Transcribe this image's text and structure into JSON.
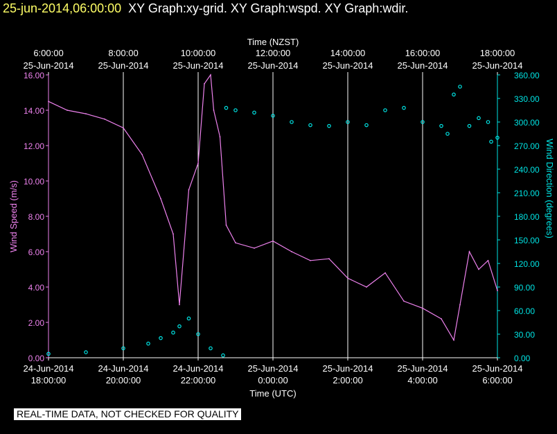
{
  "header": {
    "timestamp": "25-jun-2014,06:00:00",
    "title": "XY Graph:xy-grid.  XY Graph:wspd.  XY Graph:wdir."
  },
  "notice": "REAL-TIME DATA, NOT CHECKED FOR QUALITY",
  "colors": {
    "background": "#000000",
    "speed": "#ee82ee",
    "direction": "#00e5e5",
    "grid": "#ffffff",
    "timestamp": "#ffff66"
  },
  "chart_data": {
    "type": "line",
    "top_axis_label": "Time (NZST)",
    "top_ticks": [
      {
        "time": "6:00:00",
        "date": "25-Jun-2014"
      },
      {
        "time": "8:00:00",
        "date": "25-Jun-2014"
      },
      {
        "time": "10:00:00",
        "date": "25-Jun-2014"
      },
      {
        "time": "12:00:00",
        "date": "25-Jun-2014"
      },
      {
        "time": "14:00:00",
        "date": "25-Jun-2014"
      },
      {
        "time": "16:00:00",
        "date": "25-Jun-2014"
      },
      {
        "time": "18:00:00",
        "date": "25-Jun-2014"
      }
    ],
    "xlabel": "Time (UTC)",
    "bottom_ticks": [
      {
        "date": "24-Jun-2014",
        "time": "18:00:00"
      },
      {
        "date": "24-Jun-2014",
        "time": "20:00:00"
      },
      {
        "date": "24-Jun-2014",
        "time": "22:00:00"
      },
      {
        "date": "25-Jun-2014",
        "time": "0:00:00"
      },
      {
        "date": "25-Jun-2014",
        "time": "2:00:00"
      },
      {
        "date": "25-Jun-2014",
        "time": "4:00:00"
      },
      {
        "date": "25-Jun-2014",
        "time": "6:00:00"
      }
    ],
    "xlim_utc": [
      "24-Jun-2014 18:00:00",
      "25-Jun-2014 06:00:00"
    ],
    "grid": true,
    "left_axis": {
      "label": "Wind Speed (m/s)",
      "ticks": [
        "0.00",
        "2.00",
        "4.00",
        "6.00",
        "8.00",
        "10.00",
        "12.00",
        "14.00",
        "16.00"
      ],
      "ylim": [
        0,
        16
      ]
    },
    "right_axis": {
      "label": "Wind Direction (degrees)",
      "ticks": [
        "0.00",
        "30.00",
        "60.00",
        "90.00",
        "120.00",
        "150.00",
        "180.00",
        "210.00",
        "240.00",
        "270.00",
        "300.00",
        "330.00",
        "360.00"
      ],
      "ylim": [
        0,
        360
      ]
    },
    "series": [
      {
        "axis": "left",
        "style": "line",
        "x": [
          "24-Jun-2014 18:00",
          "24-Jun-2014 18:30",
          "24-Jun-2014 19:00",
          "24-Jun-2014 19:30",
          "24-Jun-2014 20:00",
          "24-Jun-2014 20:30",
          "24-Jun-2014 21:00",
          "24-Jun-2014 21:20",
          "24-Jun-2014 21:30",
          "24-Jun-2014 21:45",
          "24-Jun-2014 22:00",
          "24-Jun-2014 22:10",
          "24-Jun-2014 22:20",
          "24-Jun-2014 22:25",
          "24-Jun-2014 22:35",
          "24-Jun-2014 22:45",
          "24-Jun-2014 23:00",
          "24-Jun-2014 23:30",
          "25-Jun-2014 00:00",
          "25-Jun-2014 00:30",
          "25-Jun-2014 01:00",
          "25-Jun-2014 01:30",
          "25-Jun-2014 02:00",
          "25-Jun-2014 02:30",
          "25-Jun-2014 03:00",
          "25-Jun-2014 03:30",
          "25-Jun-2014 04:00",
          "25-Jun-2014 04:30",
          "25-Jun-2014 04:50",
          "25-Jun-2014 05:00",
          "25-Jun-2014 05:15",
          "25-Jun-2014 05:30",
          "25-Jun-2014 05:45",
          "25-Jun-2014 06:00"
        ],
        "values": [
          14.5,
          14.0,
          13.8,
          13.5,
          13.0,
          11.5,
          9.0,
          7.0,
          3.0,
          9.5,
          11.0,
          15.5,
          16.0,
          14.0,
          12.5,
          7.5,
          6.5,
          6.2,
          6.6,
          6.0,
          5.5,
          5.6,
          4.5,
          4.0,
          4.8,
          3.2,
          2.8,
          2.2,
          1.0,
          3.0,
          6.0,
          5.0,
          5.5,
          3.8
        ]
      },
      {
        "axis": "right",
        "style": "points",
        "x": [
          "24-Jun-2014 18:00",
          "24-Jun-2014 19:00",
          "24-Jun-2014 20:00",
          "24-Jun-2014 20:40",
          "24-Jun-2014 21:00",
          "24-Jun-2014 21:20",
          "24-Jun-2014 21:30",
          "24-Jun-2014 21:45",
          "24-Jun-2014 22:00",
          "24-Jun-2014 22:20",
          "24-Jun-2014 22:40",
          "24-Jun-2014 22:45",
          "24-Jun-2014 23:00",
          "24-Jun-2014 23:30",
          "25-Jun-2014 00:00",
          "25-Jun-2014 00:30",
          "25-Jun-2014 01:00",
          "25-Jun-2014 01:30",
          "25-Jun-2014 02:00",
          "25-Jun-2014 02:30",
          "25-Jun-2014 03:00",
          "25-Jun-2014 03:30",
          "25-Jun-2014 04:00",
          "25-Jun-2014 04:30",
          "25-Jun-2014 04:40",
          "25-Jun-2014 04:50",
          "25-Jun-2014 05:00",
          "25-Jun-2014 05:15",
          "25-Jun-2014 05:30",
          "25-Jun-2014 05:45",
          "25-Jun-2014 05:50",
          "25-Jun-2014 06:00"
        ],
        "values": [
          5,
          7,
          12,
          18,
          25,
          32,
          40,
          50,
          30,
          12,
          3,
          318,
          315,
          312,
          308,
          300,
          296,
          295,
          300,
          296,
          315,
          318,
          300,
          295,
          285,
          335,
          345,
          295,
          305,
          300,
          275,
          280
        ]
      }
    ]
  }
}
